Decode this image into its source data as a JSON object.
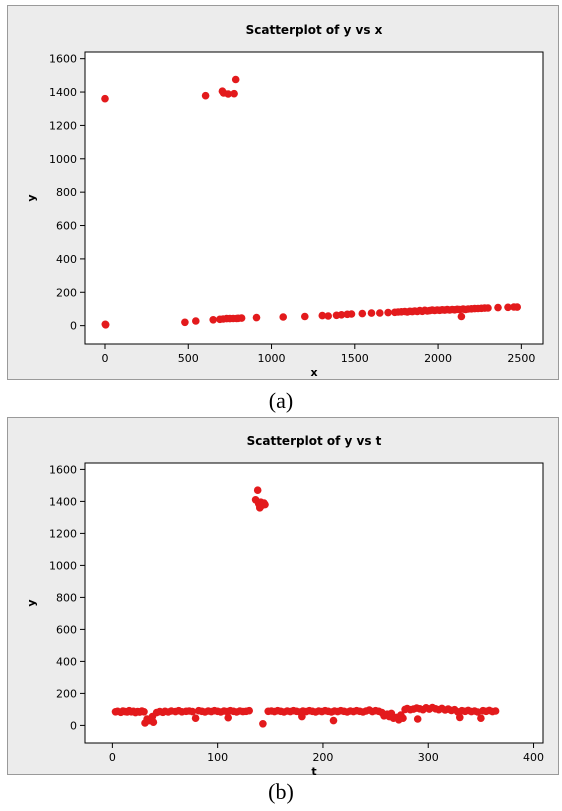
{
  "figure": {
    "caption_a": "(a)",
    "caption_b": "(b)",
    "marker_color": "#e31a1c",
    "panel_background": "#ececec",
    "plot_background": "#ffffff"
  },
  "chart_data": [
    {
      "type": "scatter",
      "title": "Scatterplot of y vs x",
      "xlabel": "x",
      "ylabel": "y",
      "xlim": [
        -120,
        2630
      ],
      "ylim": [
        -110,
        1640
      ],
      "xticks": [
        0,
        500,
        1000,
        1500,
        2000,
        2500
      ],
      "yticks": [
        0,
        200,
        400,
        600,
        800,
        1000,
        1200,
        1400,
        1600
      ],
      "grid": false,
      "points": [
        [
          0,
          1360
        ],
        [
          2,
          8
        ],
        [
          4,
          5
        ],
        [
          604,
          1378
        ],
        [
          705,
          1405
        ],
        [
          712,
          1395
        ],
        [
          740,
          1388
        ],
        [
          775,
          1390
        ],
        [
          785,
          1475
        ],
        [
          480,
          20
        ],
        [
          545,
          28
        ],
        [
          650,
          35
        ],
        [
          690,
          38
        ],
        [
          710,
          40
        ],
        [
          730,
          42
        ],
        [
          750,
          42
        ],
        [
          770,
          43
        ],
        [
          790,
          43
        ],
        [
          800,
          44
        ],
        [
          820,
          45
        ],
        [
          910,
          48
        ],
        [
          1070,
          52
        ],
        [
          1200,
          55
        ],
        [
          1305,
          60
        ],
        [
          1340,
          58
        ],
        [
          1390,
          62
        ],
        [
          1420,
          65
        ],
        [
          1455,
          68
        ],
        [
          1480,
          70
        ],
        [
          1545,
          72
        ],
        [
          1600,
          75
        ],
        [
          1650,
          76
        ],
        [
          1700,
          78
        ],
        [
          1740,
          80
        ],
        [
          1760,
          82
        ],
        [
          1780,
          83
        ],
        [
          1800,
          85
        ],
        [
          1815,
          82
        ],
        [
          1830,
          86
        ],
        [
          1845,
          84
        ],
        [
          1860,
          88
        ],
        [
          1875,
          85
        ],
        [
          1890,
          90
        ],
        [
          1905,
          86
        ],
        [
          1920,
          92
        ],
        [
          1935,
          88
        ],
        [
          1950,
          90
        ],
        [
          1965,
          93
        ],
        [
          1980,
          91
        ],
        [
          1995,
          94
        ],
        [
          2010,
          92
        ],
        [
          2025,
          95
        ],
        [
          2040,
          93
        ],
        [
          2055,
          96
        ],
        [
          2070,
          94
        ],
        [
          2085,
          97
        ],
        [
          2100,
          95
        ],
        [
          2115,
          98
        ],
        [
          2130,
          96
        ],
        [
          2140,
          55
        ],
        [
          2150,
          99
        ],
        [
          2165,
          97
        ],
        [
          2180,
          100
        ],
        [
          2200,
          101
        ],
        [
          2220,
          102
        ],
        [
          2240,
          103
        ],
        [
          2260,
          104
        ],
        [
          2280,
          105
        ],
        [
          2300,
          106
        ],
        [
          2360,
          108
        ],
        [
          2420,
          110
        ],
        [
          2455,
          112
        ],
        [
          2475,
          111
        ]
      ]
    },
    {
      "type": "scatter",
      "title": "Scatterplot of y vs t",
      "xlabel": "t",
      "ylabel": "y",
      "xlim": [
        -26,
        409
      ],
      "ylim": [
        -110,
        1640
      ],
      "xticks": [
        0,
        100,
        200,
        300,
        400
      ],
      "yticks": [
        0,
        200,
        400,
        600,
        800,
        1000,
        1200,
        1400,
        1600
      ],
      "grid": false,
      "points": [
        [
          3,
          85
        ],
        [
          5,
          88
        ],
        [
          8,
          82
        ],
        [
          10,
          90
        ],
        [
          12,
          86
        ],
        [
          14,
          84
        ],
        [
          16,
          92
        ],
        [
          18,
          85
        ],
        [
          20,
          88
        ],
        [
          22,
          80
        ],
        [
          24,
          86
        ],
        [
          26,
          83
        ],
        [
          28,
          90
        ],
        [
          30,
          85
        ],
        [
          31,
          15
        ],
        [
          33,
          40
        ],
        [
          35,
          30
        ],
        [
          38,
          55
        ],
        [
          39,
          20
        ],
        [
          42,
          80
        ],
        [
          45,
          86
        ],
        [
          48,
          82
        ],
        [
          50,
          88
        ],
        [
          53,
          84
        ],
        [
          56,
          90
        ],
        [
          60,
          86
        ],
        [
          63,
          92
        ],
        [
          66,
          85
        ],
        [
          70,
          88
        ],
        [
          73,
          90
        ],
        [
          76,
          86
        ],
        [
          79,
          45
        ],
        [
          82,
          92
        ],
        [
          85,
          88
        ],
        [
          88,
          84
        ],
        [
          91,
          90
        ],
        [
          94,
          86
        ],
        [
          97,
          92
        ],
        [
          100,
          88
        ],
        [
          103,
          84
        ],
        [
          106,
          90
        ],
        [
          109,
          86
        ],
        [
          110,
          48
        ],
        [
          112,
          92
        ],
        [
          115,
          88
        ],
        [
          118,
          84
        ],
        [
          121,
          90
        ],
        [
          124,
          86
        ],
        [
          127,
          88
        ],
        [
          130,
          92
        ],
        [
          136,
          1410
        ],
        [
          138,
          1470
        ],
        [
          139,
          1385
        ],
        [
          140,
          1360
        ],
        [
          141,
          1395
        ],
        [
          142,
          1375
        ],
        [
          144,
          1390
        ],
        [
          145,
          1380
        ],
        [
          143,
          10
        ],
        [
          148,
          88
        ],
        [
          151,
          90
        ],
        [
          154,
          86
        ],
        [
          157,
          92
        ],
        [
          160,
          88
        ],
        [
          163,
          84
        ],
        [
          166,
          90
        ],
        [
          169,
          86
        ],
        [
          172,
          92
        ],
        [
          175,
          88
        ],
        [
          178,
          84
        ],
        [
          180,
          55
        ],
        [
          181,
          90
        ],
        [
          184,
          86
        ],
        [
          187,
          92
        ],
        [
          190,
          88
        ],
        [
          193,
          84
        ],
        [
          196,
          90
        ],
        [
          199,
          86
        ],
        [
          202,
          92
        ],
        [
          205,
          88
        ],
        [
          208,
          84
        ],
        [
          210,
          30
        ],
        [
          211,
          90
        ],
        [
          214,
          86
        ],
        [
          217,
          92
        ],
        [
          220,
          88
        ],
        [
          223,
          84
        ],
        [
          226,
          90
        ],
        [
          229,
          86
        ],
        [
          232,
          92
        ],
        [
          235,
          88
        ],
        [
          238,
          84
        ],
        [
          241,
          90
        ],
        [
          244,
          96
        ],
        [
          247,
          86
        ],
        [
          250,
          92
        ],
        [
          253,
          88
        ],
        [
          256,
          80
        ],
        [
          258,
          60
        ],
        [
          261,
          70
        ],
        [
          263,
          55
        ],
        [
          265,
          75
        ],
        [
          267,
          45
        ],
        [
          270,
          50
        ],
        [
          272,
          35
        ],
        [
          274,
          65
        ],
        [
          276,
          45
        ],
        [
          278,
          100
        ],
        [
          280,
          105
        ],
        [
          283,
          98
        ],
        [
          286,
          102
        ],
        [
          289,
          108
        ],
        [
          290,
          40
        ],
        [
          292,
          104
        ],
        [
          295,
          98
        ],
        [
          298,
          110
        ],
        [
          301,
          102
        ],
        [
          304,
          112
        ],
        [
          307,
          104
        ],
        [
          310,
          98
        ],
        [
          313,
          106
        ],
        [
          316,
          96
        ],
        [
          319,
          102
        ],
        [
          322,
          94
        ],
        [
          325,
          98
        ],
        [
          328,
          85
        ],
        [
          330,
          50
        ],
        [
          332,
          92
        ],
        [
          335,
          88
        ],
        [
          338,
          94
        ],
        [
          341,
          86
        ],
        [
          344,
          90
        ],
        [
          347,
          84
        ],
        [
          350,
          45
        ],
        [
          352,
          92
        ],
        [
          355,
          88
        ],
        [
          358,
          94
        ],
        [
          361,
          86
        ],
        [
          364,
          90
        ]
      ]
    }
  ]
}
